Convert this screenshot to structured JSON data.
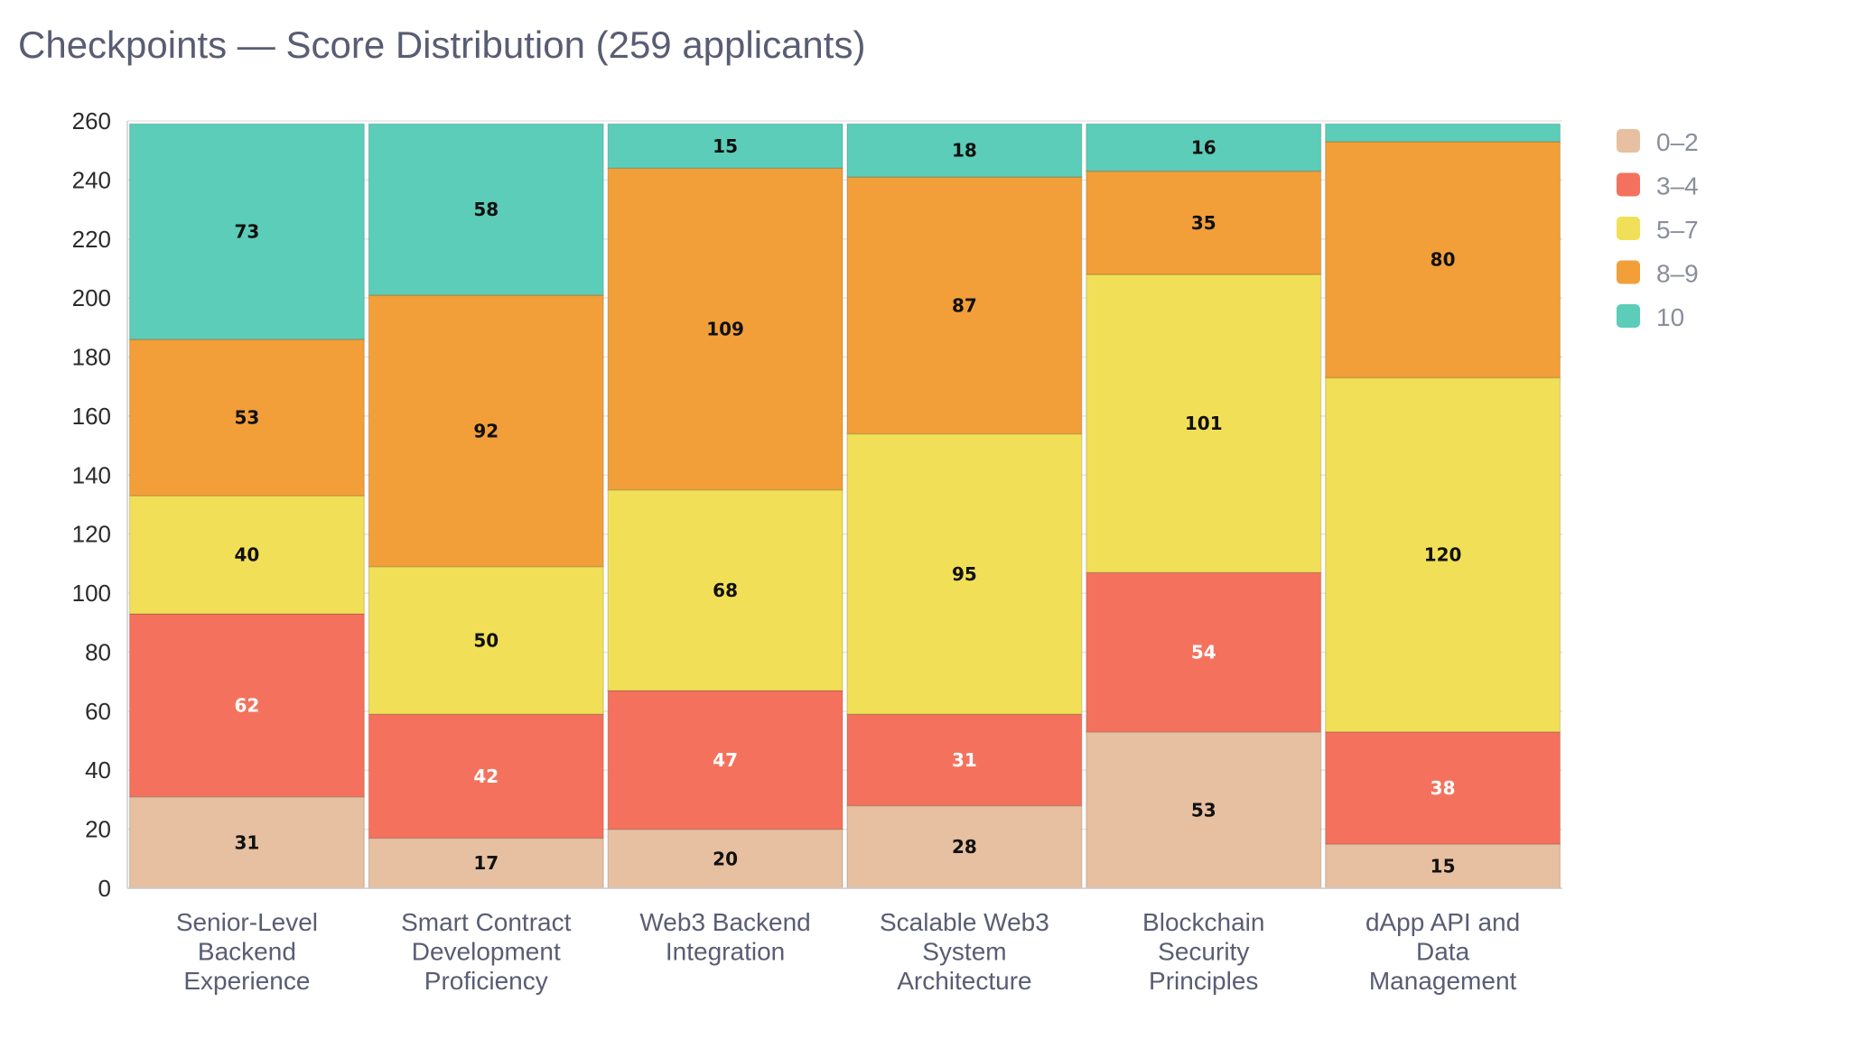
{
  "title": "Checkpoints — Score Distribution (259 applicants)",
  "colors": {
    "0–2": "#e6c0a0",
    "3–4": "#f4725d",
    "5–7": "#f1e057",
    "8–9": "#f29f3a",
    "10": "#5ccdb8",
    "grid": "#e6e6e6",
    "axis": "#cfcfcf"
  },
  "chart_data": {
    "type": "bar",
    "stacked": true,
    "title": "Checkpoints — Score Distribution (259 applicants)",
    "categories": [
      [
        "Senior-Level",
        "Backend",
        "Experience"
      ],
      [
        "Smart Contract",
        "Development",
        "Proficiency"
      ],
      [
        "Web3 Backend",
        "Integration"
      ],
      [
        "Scalable Web3",
        "System",
        "Architecture"
      ],
      [
        "Blockchain",
        "Security",
        "Principles"
      ],
      [
        "dApp API and",
        "Data",
        "Management"
      ]
    ],
    "series": [
      {
        "name": "0–2",
        "values": [
          31,
          17,
          20,
          28,
          53,
          15
        ]
      },
      {
        "name": "3–4",
        "values": [
          62,
          42,
          47,
          31,
          54,
          38
        ]
      },
      {
        "name": "5–7",
        "values": [
          40,
          50,
          68,
          95,
          101,
          120
        ]
      },
      {
        "name": "8–9",
        "values": [
          53,
          92,
          109,
          87,
          35,
          80
        ]
      },
      {
        "name": "10",
        "values": [
          73,
          58,
          15,
          18,
          16,
          6
        ]
      }
    ],
    "hidden_labels": [
      [
        5,
        4
      ]
    ],
    "ylim": [
      0,
      260
    ],
    "yticks": [
      0,
      20,
      40,
      60,
      80,
      100,
      120,
      140,
      160,
      180,
      200,
      220,
      240,
      260
    ],
    "xlabel": "",
    "ylabel": "",
    "grid": true,
    "legend": "top-right"
  }
}
